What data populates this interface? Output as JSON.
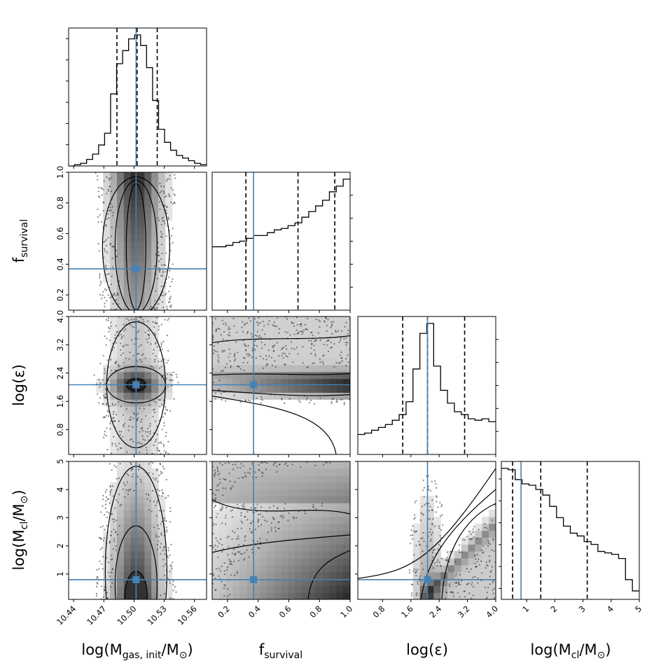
{
  "chart_data": {
    "type": "corner",
    "parameters": [
      {
        "key": "mgas",
        "label_main": "log(M",
        "label_sub": "gas, init",
        "label_tail": "/M",
        "label_sun": "⊙",
        "label_close": ")",
        "range": [
          10.435,
          10.572
        ],
        "ticks": [
          10.44,
          10.47,
          10.5,
          10.53,
          10.56
        ],
        "tick_labels": [
          "10.44",
          "10.47",
          "10.50",
          "10.53",
          "10.56"
        ],
        "truth": 10.502,
        "quantiles": [
          10.483,
          10.503,
          10.523
        ]
      },
      {
        "key": "fsurv",
        "label_main": "f",
        "label_sub": "survival",
        "range": [
          0.1,
          1.0
        ],
        "ticks": [
          0.2,
          0.4,
          0.6,
          0.8,
          1.0
        ],
        "tick_labels": [
          "0.2",
          "0.4",
          "0.6",
          "0.8",
          "1.0"
        ],
        "y_ticks": [
          0.2,
          0.4,
          0.6,
          0.8,
          1.0
        ],
        "y_tick_labels": [
          "0.2",
          "0.4",
          "0.6",
          "0.8",
          "1.0"
        ],
        "truth": 0.37,
        "quantiles": [
          0.32,
          0.66,
          0.9
        ]
      },
      {
        "key": "leps",
        "label_main": "log(",
        "label_greek": "ε",
        "label_close": ")",
        "range": [
          0.1,
          4.0
        ],
        "ticks": [
          0.8,
          1.6,
          2.4,
          3.2,
          4.0
        ],
        "tick_labels": [
          "0.8",
          "1.6",
          "2.4",
          "3.2",
          "4.0"
        ],
        "truth": 2.07,
        "quantiles": [
          1.37,
          2.07,
          3.12
        ]
      },
      {
        "key": "mcl",
        "label_main": "log(M",
        "label_sub": "cl",
        "label_tail": "/M",
        "label_sun": "⊙",
        "label_close": ")",
        "range": [
          0.1,
          5.0
        ],
        "ticks": [
          1,
          2,
          3,
          4,
          5
        ],
        "tick_labels": [
          "1",
          "2",
          "3",
          "4",
          "5"
        ],
        "truth": 0.8,
        "quantiles": [
          0.5,
          1.5,
          3.15
        ]
      }
    ],
    "histograms": [
      {
        "param": "mgas",
        "x": [
          10.438,
          10.444,
          10.45,
          10.456,
          10.462,
          10.468,
          10.474,
          10.48,
          10.486,
          10.492,
          10.498,
          10.504,
          10.51,
          10.516,
          10.522,
          10.528,
          10.534,
          10.54,
          10.546,
          10.552,
          10.558,
          10.564,
          10.57
        ],
        "values": [
          0.0,
          0.01,
          0.02,
          0.05,
          0.09,
          0.16,
          0.25,
          0.55,
          0.78,
          0.88,
          0.97,
          1.0,
          0.92,
          0.75,
          0.5,
          0.28,
          0.18,
          0.12,
          0.08,
          0.06,
          0.04,
          0.02,
          0.01
        ]
      },
      {
        "param": "fsurv",
        "x": [
          0.1,
          0.145,
          0.19,
          0.235,
          0.28,
          0.325,
          0.37,
          0.415,
          0.46,
          0.505,
          0.55,
          0.595,
          0.64,
          0.685,
          0.73,
          0.775,
          0.82,
          0.865,
          0.91,
          0.955
        ],
        "values": [
          0.45,
          0.45,
          0.46,
          0.48,
          0.49,
          0.51,
          0.53,
          0.53,
          0.55,
          0.57,
          0.58,
          0.6,
          0.62,
          0.66,
          0.7,
          0.74,
          0.78,
          0.84,
          0.88,
          0.93
        ]
      },
      {
        "param": "leps",
        "x": [
          0.1,
          0.295,
          0.49,
          0.685,
          0.88,
          1.075,
          1.27,
          1.465,
          1.66,
          1.855,
          2.05,
          2.245,
          2.44,
          2.635,
          2.83,
          3.025,
          3.22,
          3.415,
          3.61,
          3.805
        ],
        "values": [
          0.14,
          0.15,
          0.17,
          0.19,
          0.21,
          0.24,
          0.28,
          0.37,
          0.6,
          0.85,
          0.92,
          0.62,
          0.45,
          0.36,
          0.3,
          0.28,
          0.25,
          0.24,
          0.25,
          0.23
        ]
      },
      {
        "param": "mcl",
        "x": [
          0.1,
          0.345,
          0.59,
          0.835,
          1.08,
          1.325,
          1.57,
          1.815,
          2.06,
          2.305,
          2.55,
          2.795,
          3.04,
          3.285,
          3.53,
          3.775,
          4.02,
          4.265,
          4.51,
          4.755
        ],
        "values": [
          0.93,
          0.92,
          0.85,
          0.82,
          0.81,
          0.78,
          0.74,
          0.66,
          0.58,
          0.52,
          0.47,
          0.45,
          0.41,
          0.39,
          0.34,
          0.33,
          0.32,
          0.29,
          0.14,
          0.06
        ]
      }
    ],
    "panels": [
      {
        "x": "mgas",
        "y": "fsurv"
      },
      {
        "x": "mgas",
        "y": "leps"
      },
      {
        "x": "fsurv",
        "y": "leps"
      },
      {
        "x": "mgas",
        "y": "mcl"
      },
      {
        "x": "fsurv",
        "y": "mcl"
      },
      {
        "x": "leps",
        "y": "mcl"
      }
    ],
    "truth_color": "#4682b4",
    "contour_color": "#000000",
    "quantile_style": "dashed",
    "grid": false,
    "legend": "none"
  }
}
